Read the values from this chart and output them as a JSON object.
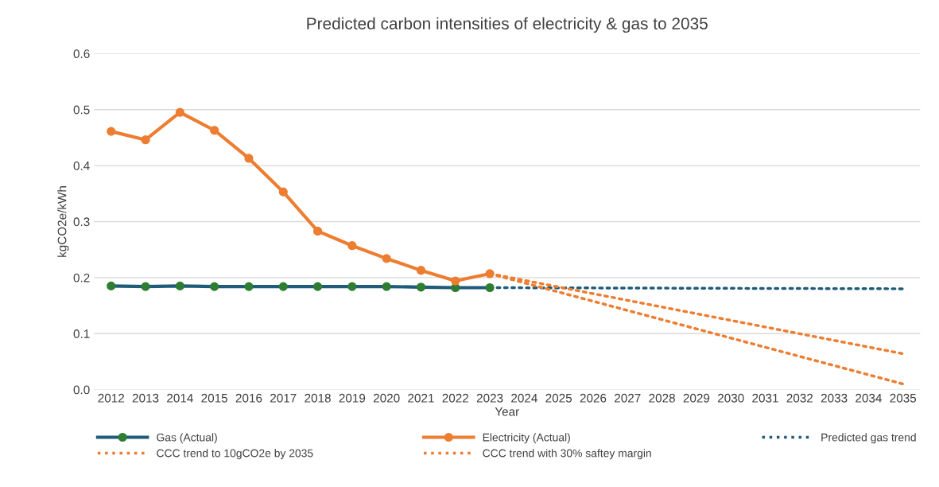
{
  "chart_data": {
    "type": "line",
    "title": "Predicted carbon intensities of electricity & gas to 2035",
    "xlabel": "Year",
    "ylabel": "kgCO2e/kWh",
    "xlim": [
      2011.5,
      2035.5
    ],
    "xticks": [
      2012,
      2013,
      2014,
      2015,
      2016,
      2017,
      2018,
      2019,
      2020,
      2021,
      2022,
      2023,
      2024,
      2025,
      2026,
      2027,
      2028,
      2029,
      2030,
      2031,
      2032,
      2033,
      2034,
      2035
    ],
    "ylim": [
      0,
      0.6
    ],
    "yticks": [
      {
        "value": 0,
        "label": "0.0"
      },
      0.1,
      0.2,
      0.3,
      0.4,
      0.5,
      0.6
    ],
    "grid": "y",
    "legend": "bottom",
    "series": [
      {
        "name": "Gas (Actual)",
        "color": "#1f5c7a",
        "colors": [
          "#2e7d32",
          "#2e7d32",
          "#2e7d32",
          "#2e7d32",
          "#2e7d32",
          "#2e7d32",
          "#2e7d32",
          "#2e7d32",
          "#2e7d32",
          "#2e7d32",
          "#2e7d32",
          "#2e7d32"
        ],
        "marker": "circle",
        "line_style": "solid",
        "x": [
          2012,
          2013,
          2014,
          2015,
          2016,
          2017,
          2018,
          2019,
          2020,
          2021,
          2022,
          2023
        ],
        "values": [
          0.185,
          0.184,
          0.185,
          0.184,
          0.184,
          0.184,
          0.184,
          0.184,
          0.184,
          0.183,
          0.182,
          0.182
        ]
      },
      {
        "name": "Electricity (Actual)",
        "color": "#ed7d31",
        "marker": "circle",
        "line_style": "solid",
        "x": [
          2012,
          2013,
          2014,
          2015,
          2016,
          2017,
          2018,
          2019,
          2020,
          2021,
          2022,
          2023
        ],
        "values": [
          0.461,
          0.446,
          0.495,
          0.463,
          0.413,
          0.353,
          0.283,
          0.257,
          0.234,
          0.213,
          0.194,
          0.207
        ]
      },
      {
        "name": "Predicted gas trend",
        "color": "#1f5c7a",
        "marker": "none",
        "line_style": "dotted",
        "x": [
          2023,
          2035
        ],
        "values": [
          0.182,
          0.18
        ]
      },
      {
        "name": "CCC trend to 10gCO2e by 2035",
        "color": "#ed7d31",
        "marker": "none",
        "line_style": "dotted",
        "x": [
          2023,
          2035
        ],
        "values": [
          0.207,
          0.01
        ]
      },
      {
        "name": "CCC trend with 30% saftey margin",
        "color": "#ed7d31",
        "marker": "none",
        "line_style": "dotted",
        "x": [
          2023,
          2035
        ],
        "values": [
          0.207,
          0.064
        ]
      }
    ]
  }
}
